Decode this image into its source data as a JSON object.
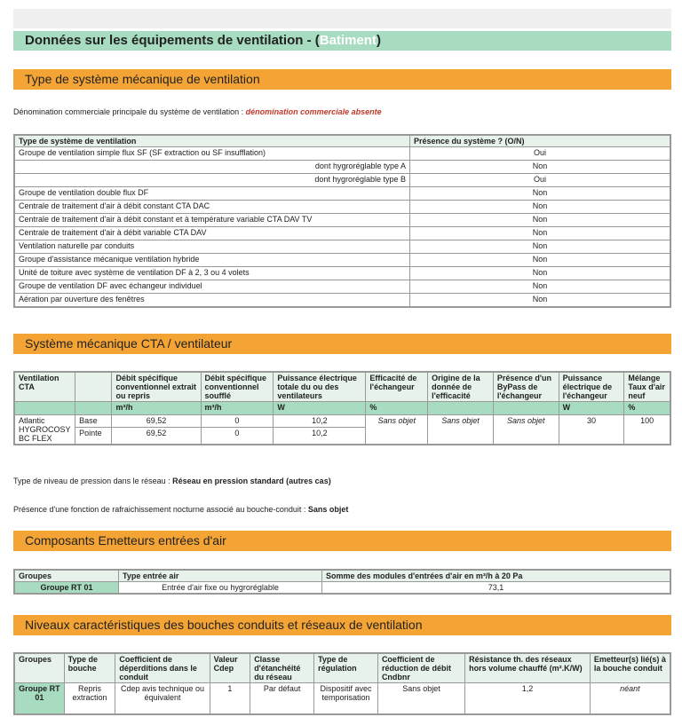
{
  "header": {
    "title_prefix": "Données sur les équipements de ventilation - (",
    "title_highlight": "Batiment",
    "title_suffix": ")"
  },
  "section1": {
    "title": "Type de système mécanique de ventilation",
    "denomination_label": "Dénomination commerciale principale du système de ventilation : ",
    "denomination_value": "dénomination commerciale absente",
    "headers": [
      "Type de système de ventilation",
      "Présence du système ? (O/N)"
    ],
    "rows": [
      {
        "label": "Groupe de ventilation simple flux SF (SF extraction ou SF insufflation)",
        "value": "Oui",
        "align": "left"
      },
      {
        "label": "dont hygroréglable type A",
        "value": "Non",
        "align": "right"
      },
      {
        "label": "dont hygroréglable type B",
        "value": "Oui",
        "align": "right"
      },
      {
        "label": "Groupe de ventilation double flux DF",
        "value": "Non",
        "align": "left"
      },
      {
        "label": "Centrale de traitement d'air à débit constant CTA DAC",
        "value": "Non",
        "align": "left"
      },
      {
        "label": "Centrale de traitement d'air à débit constant et à température variable CTA DAV TV",
        "value": "Non",
        "align": "left"
      },
      {
        "label": "Centrale de traitement d'air à débit variable CTA DAV",
        "value": "Non",
        "align": "left"
      },
      {
        "label": "Ventilation naturelle par conduits",
        "value": "Non",
        "align": "left"
      },
      {
        "label": "Groupe d'assistance mécanique ventilation hybride",
        "value": "Non",
        "align": "left"
      },
      {
        "label": "Unité de toiture avec système de ventilation DF à 2, 3 ou 4 volets",
        "value": "Non",
        "align": "left"
      },
      {
        "label": "Groupe de ventilation DF avec échangeur individuel",
        "value": "Non",
        "align": "left"
      },
      {
        "label": "Aération par ouverture des fenêtres",
        "value": "Non",
        "align": "left"
      }
    ]
  },
  "section2": {
    "title": "Système mécanique CTA / ventilateur",
    "headers": [
      "Ventilation CTA",
      "",
      "Débit spécifique conventionnel extrait ou repris",
      "Débit spécifique conventionnel soufflé",
      "Puissance électrique totale du ou des ventilateurs",
      "Efficacité de l'échangeur",
      "Origine de la donnée de l'efficacité",
      "Présence d'un ByPass de l'échangeur",
      "Puissance électrique de l'échangeur",
      "Mélange Taux d'air neuf"
    ],
    "units": [
      "",
      "",
      "m³/h",
      "m³/h",
      "W",
      "%",
      "",
      "",
      "W",
      "%"
    ],
    "name": "Atlantic HYGROCOSY BC FLEX",
    "rows": [
      {
        "mode": "Base",
        "extrait": "69,52",
        "souffle": "0",
        "puissance": "10,2"
      },
      {
        "mode": "Pointe",
        "extrait": "69,52",
        "souffle": "0",
        "puissance": "10,2"
      }
    ],
    "efficacite": "Sans objet",
    "origine": "Sans objet",
    "bypass": "Sans objet",
    "puissance_echangeur": "30",
    "taux_air_neuf": "100",
    "pression_label": "Type de niveau de pression dans le réseau : ",
    "pression_value": "Réseau en pression standard (autres cas)",
    "rafraich_label": "Présence d'une fonction de rafraichissement nocturne associé au bouche-conduit : ",
    "rafraich_value": "Sans objet"
  },
  "section3": {
    "title": "Composants Emetteurs entrées d'air",
    "headers": [
      "Groupes",
      "Type entrée air",
      "Somme des modules d'entrées d'air en m³/h à 20 Pa"
    ],
    "row": {
      "groupe": "Groupe RT 01",
      "type": "Entrée d'air fixe ou hygroréglable",
      "somme": "73,1"
    }
  },
  "section4": {
    "title": "Niveaux caractéristiques des bouches conduits et réseaux de ventilation",
    "headers": [
      "Groupes",
      "Type de bouche",
      "Coefficient de déperditions dans le conduit",
      "Valeur Cdep",
      "Classe d'étanchéité du réseau",
      "Type de régulation",
      "Coefficient de réduction de débit Cndbnr",
      "Résistance th. des réseaux hors volume chauffé (m².K/W)",
      "Emetteur(s) lié(s) à la bouche conduit"
    ],
    "row": [
      "Groupe RT 01",
      "Repris extraction",
      "Cdep avis technique ou équivalent",
      "1",
      "Par défaut",
      "Dispositif avec temporisation",
      "Sans objet",
      "1,2",
      "néant"
    ]
  }
}
